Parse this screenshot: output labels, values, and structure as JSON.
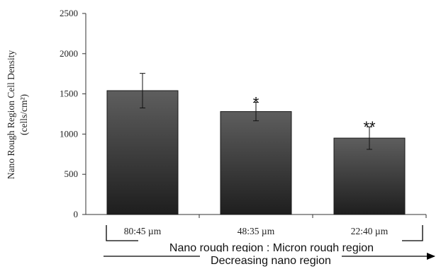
{
  "chart_data": {
    "type": "bar",
    "ylabel_line1": "Nano Rough Region Cell Density",
    "ylabel_line2": "(cells/cm²)",
    "ylim": [
      0,
      2500
    ],
    "yticks": [
      0,
      500,
      1000,
      1500,
      2000,
      2500
    ],
    "categories": [
      "80:45 µm",
      "48:35 µm",
      "22:40 µm"
    ],
    "values": [
      1540,
      1280,
      950
    ],
    "errors": [
      215,
      115,
      140
    ],
    "significance": [
      "",
      "*",
      "**"
    ],
    "annotation_primary": "Nano rough region : Micron rough region",
    "annotation_secondary": "Decreasing nano region",
    "bar_color_top": "#5e5e5e",
    "bar_color_bottom": "#1e1e1e"
  }
}
